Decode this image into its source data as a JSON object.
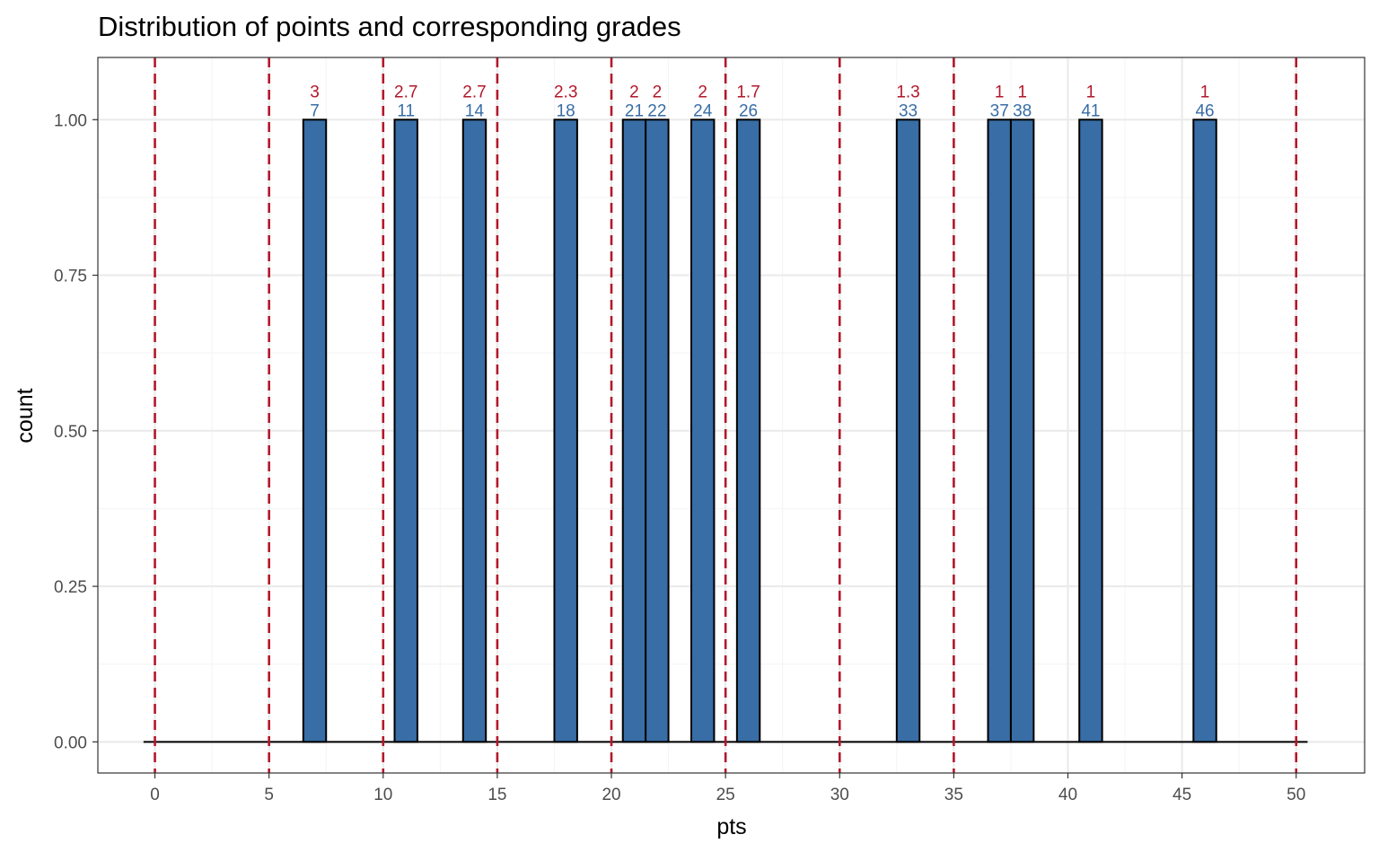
{
  "chart_data": {
    "type": "bar",
    "title": "Distribution of points and corresponding grades",
    "xlabel": "pts",
    "ylabel": "count",
    "xlim": [
      -2.5,
      53
    ],
    "ylim": [
      -0.05,
      1.1
    ],
    "xticks": [
      0,
      5,
      10,
      15,
      20,
      25,
      30,
      35,
      40,
      45,
      50
    ],
    "yticks": [
      0,
      0.25,
      0.5,
      0.75,
      1
    ],
    "ytick_labels": [
      "0.00",
      "0.25",
      "0.50",
      "0.75",
      "1.00"
    ],
    "grid": true,
    "bin_width": 1,
    "points": [
      7,
      11,
      14,
      18,
      21,
      22,
      24,
      26,
      33,
      37,
      38,
      41,
      46
    ],
    "grades": [
      "3",
      "2.7",
      "2.7",
      "2.3",
      "2",
      "2",
      "2",
      "1.7",
      "1.3",
      "1",
      "1",
      "1",
      "1"
    ],
    "counts": [
      1,
      1,
      1,
      1,
      1,
      1,
      1,
      1,
      1,
      1,
      1,
      1,
      1
    ],
    "baseline_range": [
      -0.5,
      50.5
    ],
    "grade_thresholds": [
      0,
      5,
      10,
      15,
      20,
      25,
      30,
      35,
      50
    ],
    "colors": {
      "bar_fill": "#386da5",
      "bar_stroke": "#000000",
      "threshold_line": "#b2182b",
      "point_label": "#386da5",
      "grade_label": "#b2182b",
      "grid_major": "#ebebeb",
      "grid_minor": "#f5f5f5",
      "panel_border": "#333333"
    }
  }
}
